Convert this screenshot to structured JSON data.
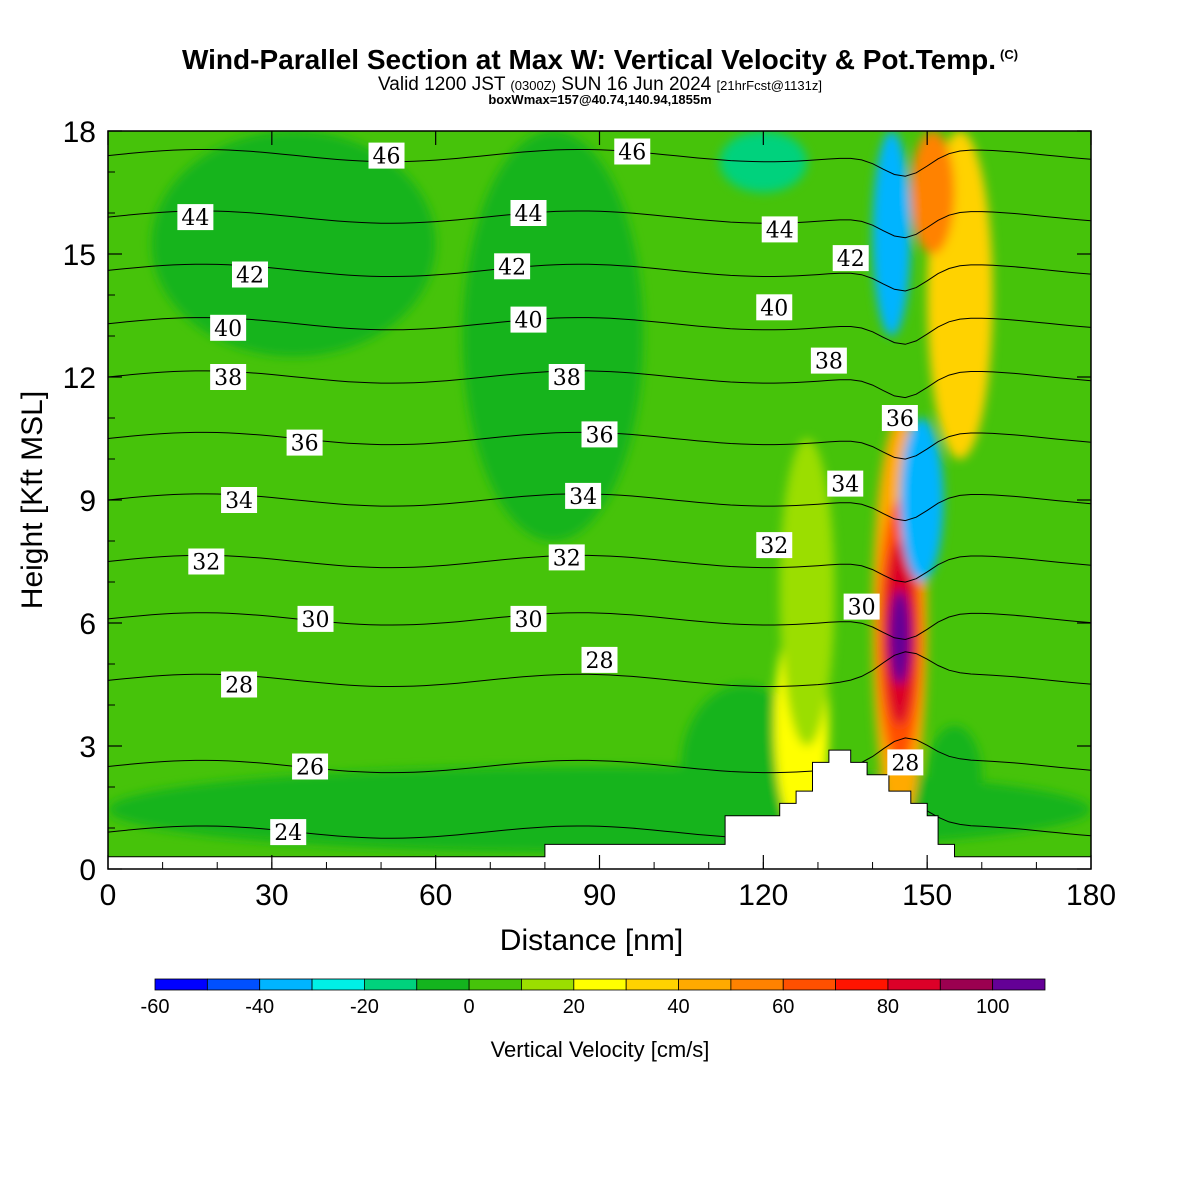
{
  "header": {
    "title": "Wind-Parallel Section at Max W: Vertical Velocity & Pot.Temp.",
    "copyright": "(C)",
    "valid_prefix": "Valid 1200 JST",
    "valid_zulu": "(0300Z)",
    "valid_date": "SUN 16 Jun 2024",
    "forecast": "[21hrFcst@1131z]",
    "box_info": "boxWmax=157@40.74,140.94,1855m"
  },
  "chart_data": {
    "type": "heatmap",
    "xlabel": "Distance [nm]",
    "ylabel": "Height [Kft MSL]",
    "xlim": [
      0,
      180
    ],
    "ylim": [
      0,
      18
    ],
    "x_ticks": [
      0,
      30,
      60,
      90,
      120,
      150,
      180
    ],
    "y_ticks": [
      0,
      3,
      6,
      9,
      12,
      15,
      18
    ],
    "colorbar": {
      "label": "Vertical Velocity [cm/s]",
      "bounds": [
        -60,
        -50,
        -40,
        -30,
        -20,
        -10,
        0,
        10,
        20,
        30,
        40,
        50,
        60,
        70,
        80,
        90,
        100,
        110
      ],
      "colors": [
        "#0000ff",
        "#0050ff",
        "#00b4ff",
        "#00f0e6",
        "#00d27d",
        "#14b41e",
        "#46c30a",
        "#9bde00",
        "#ffff00",
        "#ffd200",
        "#ffaa00",
        "#ff8200",
        "#ff5000",
        "#ff1400",
        "#dc0028",
        "#9b0050",
        "#640096"
      ],
      "tick_labels": [
        "-60",
        "-40",
        "-20",
        "0",
        "20",
        "40",
        "60",
        "80",
        "100"
      ],
      "tick_values": [
        -60,
        -40,
        -20,
        0,
        20,
        40,
        60,
        80,
        100
      ]
    },
    "background_value": 5,
    "velocity_features": [
      {
        "x": [
          0,
          180
        ],
        "y": [
          0.4,
          2.5
        ],
        "value": -5
      },
      {
        "x": [
          8,
          60
        ],
        "y": [
          12.5,
          18
        ],
        "value": -5
      },
      {
        "x": [
          65,
          98
        ],
        "y": [
          8,
          18
        ],
        "value": -5
      },
      {
        "x": [
          105,
          128
        ],
        "y": [
          0.5,
          4.5
        ],
        "value": -5
      },
      {
        "x": [
          112,
          128
        ],
        "y": [
          16.5,
          18
        ],
        "value": -15
      },
      {
        "x": [
          122,
          132
        ],
        "y": [
          0.8,
          6.3
        ],
        "value": 25
      },
      {
        "x": [
          123,
          133
        ],
        "y": [
          3,
          10.5
        ],
        "value": 15
      },
      {
        "x": [
          140,
          150
        ],
        "y": [
          1,
          11
        ],
        "value": 45
      },
      {
        "x": [
          141,
          149
        ],
        "y": [
          2.5,
          9
        ],
        "value": 65
      },
      {
        "x": [
          142,
          148
        ],
        "y": [
          3.5,
          8
        ],
        "value": 85
      },
      {
        "x": [
          143,
          147
        ],
        "y": [
          4.5,
          6.8
        ],
        "value": 105
      },
      {
        "x": [
          140,
          147
        ],
        "y": [
          13,
          18
        ],
        "value": -35
      },
      {
        "x": [
          145,
          153
        ],
        "y": [
          7,
          11
        ],
        "value": -35
      },
      {
        "x": [
          150,
          162
        ],
        "y": [
          10,
          18
        ],
        "value": 35
      },
      {
        "x": [
          147,
          155
        ],
        "y": [
          15,
          18
        ],
        "value": 55
      },
      {
        "x": [
          150,
          160
        ],
        "y": [
          1,
          3.5
        ],
        "value": -5
      }
    ],
    "terrain": {
      "x": [
        0,
        80,
        80,
        113,
        113,
        123,
        123,
        126,
        126,
        129,
        129,
        132,
        132,
        136,
        136,
        139,
        139,
        143,
        143,
        147,
        147,
        150,
        150,
        152,
        152,
        155,
        155,
        180
      ],
      "y": [
        0.3,
        0.3,
        0.6,
        0.6,
        1.3,
        1.3,
        1.6,
        1.6,
        1.9,
        1.9,
        2.6,
        2.6,
        2.9,
        2.9,
        2.6,
        2.6,
        2.3,
        2.3,
        1.9,
        1.9,
        1.6,
        1.6,
        1.3,
        1.3,
        0.6,
        0.6,
        0.3,
        0.3
      ]
    },
    "isentropes": [
      {
        "value": 24,
        "label": "24",
        "label_at": [
          33,
          0.9
        ],
        "y_base": 0.9
      },
      {
        "value": 26,
        "label": "26",
        "label_at": [
          37,
          2.5
        ],
        "y_base": 2.5
      },
      {
        "value": 28,
        "label": "28",
        "label_at": [
          24,
          4.5
        ],
        "y_base": 4.6
      },
      {
        "value": 30,
        "label": "30",
        "label_at": [
          38,
          6.1
        ],
        "y_base": 6.1
      },
      {
        "value": 32,
        "label": "32",
        "label_at": [
          18,
          7.5
        ],
        "y_base": 7.5
      },
      {
        "value": 34,
        "label": "34",
        "label_at": [
          24,
          9.0
        ],
        "y_base": 9.0
      },
      {
        "value": 36,
        "label": "36",
        "label_at": [
          36,
          10.4
        ],
        "y_base": 10.5
      },
      {
        "value": 38,
        "label": "38",
        "label_at": [
          22,
          12.0
        ],
        "y_base": 12.0
      },
      {
        "value": 40,
        "label": "40",
        "label_at": [
          22,
          13.2
        ],
        "y_base": 13.3
      },
      {
        "value": 42,
        "label": "42",
        "label_at": [
          26,
          14.5
        ],
        "y_base": 14.6
      },
      {
        "value": 44,
        "label": "44",
        "label_at": [
          16,
          15.9
        ],
        "y_base": 15.9
      },
      {
        "value": 46,
        "label": "46",
        "label_at": [
          51,
          17.4
        ],
        "y_base": 17.4
      }
    ],
    "extra_labels": [
      {
        "text": "46",
        "at": [
          96,
          17.5
        ]
      },
      {
        "text": "44",
        "at": [
          77,
          16.0
        ]
      },
      {
        "text": "44",
        "at": [
          123,
          15.6
        ]
      },
      {
        "text": "42",
        "at": [
          74,
          14.7
        ]
      },
      {
        "text": "42",
        "at": [
          136,
          14.9
        ]
      },
      {
        "text": "40",
        "at": [
          77,
          13.4
        ]
      },
      {
        "text": "40",
        "at": [
          122,
          13.7
        ]
      },
      {
        "text": "38",
        "at": [
          84,
          12.0
        ]
      },
      {
        "text": "38",
        "at": [
          132,
          12.4
        ]
      },
      {
        "text": "36",
        "at": [
          90,
          10.6
        ]
      },
      {
        "text": "36",
        "at": [
          145,
          11.0
        ]
      },
      {
        "text": "34",
        "at": [
          87,
          9.1
        ]
      },
      {
        "text": "34",
        "at": [
          135,
          9.4
        ]
      },
      {
        "text": "32",
        "at": [
          84,
          7.6
        ]
      },
      {
        "text": "32",
        "at": [
          122,
          7.9
        ]
      },
      {
        "text": "30",
        "at": [
          77,
          6.1
        ]
      },
      {
        "text": "30",
        "at": [
          138,
          6.4
        ]
      },
      {
        "text": "28",
        "at": [
          90,
          5.1
        ]
      },
      {
        "text": "28",
        "at": [
          146,
          2.6
        ]
      }
    ]
  }
}
